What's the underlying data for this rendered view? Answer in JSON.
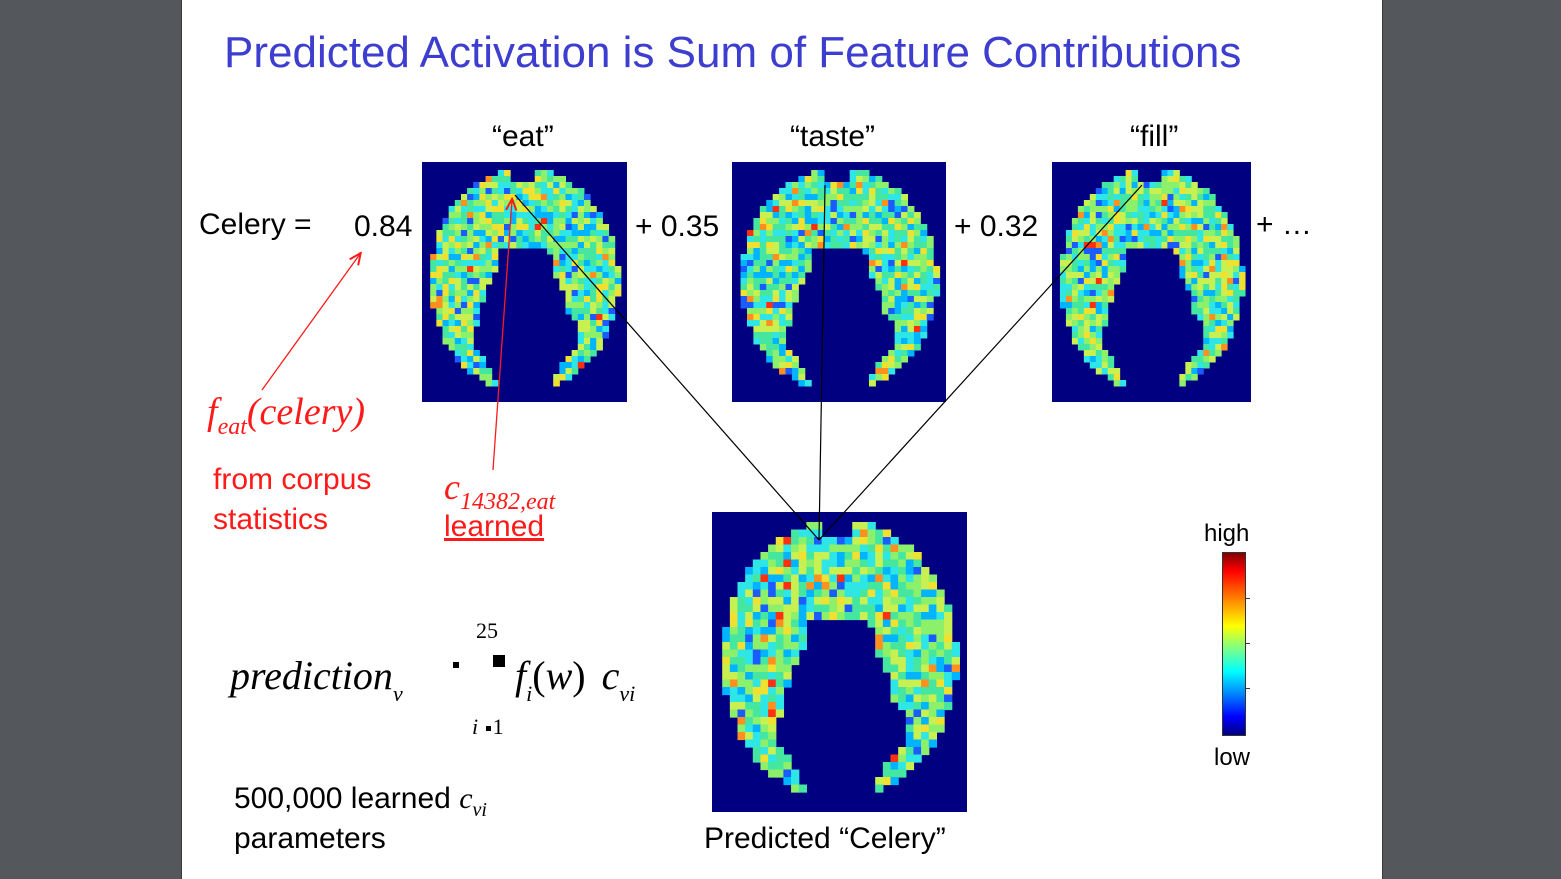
{
  "title": "Predicted Activation is Sum of Feature Contributions",
  "features": [
    {
      "label": "“eat”",
      "coefficient": "0.84"
    },
    {
      "label": "“taste”",
      "coefficient": "+ 0.35"
    },
    {
      "label": "“fill”",
      "coefficient": "+ 0.32"
    }
  ],
  "lhs": "Celery =",
  "ellipsis": "+ …",
  "feat_annotation": {
    "f": "f",
    "sub": "eat",
    "arg": "(celery)",
    "source": [
      "from corpus",
      "statistics"
    ]
  },
  "c_annotation": {
    "c": "c",
    "sub": "14382,eat",
    "note": "learned"
  },
  "formula": {
    "lhs": "prediction",
    "lhs_sub": "v",
    "upper": "25",
    "lower_i": "i",
    "lower_1": "1",
    "term_f": "f",
    "term_f_sub": "i",
    "term_arg": "(w)",
    "term_c": "c",
    "term_c_sub": "vi"
  },
  "params": {
    "line1": "500,000 learned",
    "c": "c",
    "c_sub": "vi",
    "line2": "parameters"
  },
  "predicted_caption": "Predicted “Celery”",
  "colorbar": {
    "high": "high",
    "low": "low"
  },
  "colors": {
    "title": "#3d3dcf",
    "annotation": "#ff1a1a",
    "brain_bg": "#000080"
  }
}
